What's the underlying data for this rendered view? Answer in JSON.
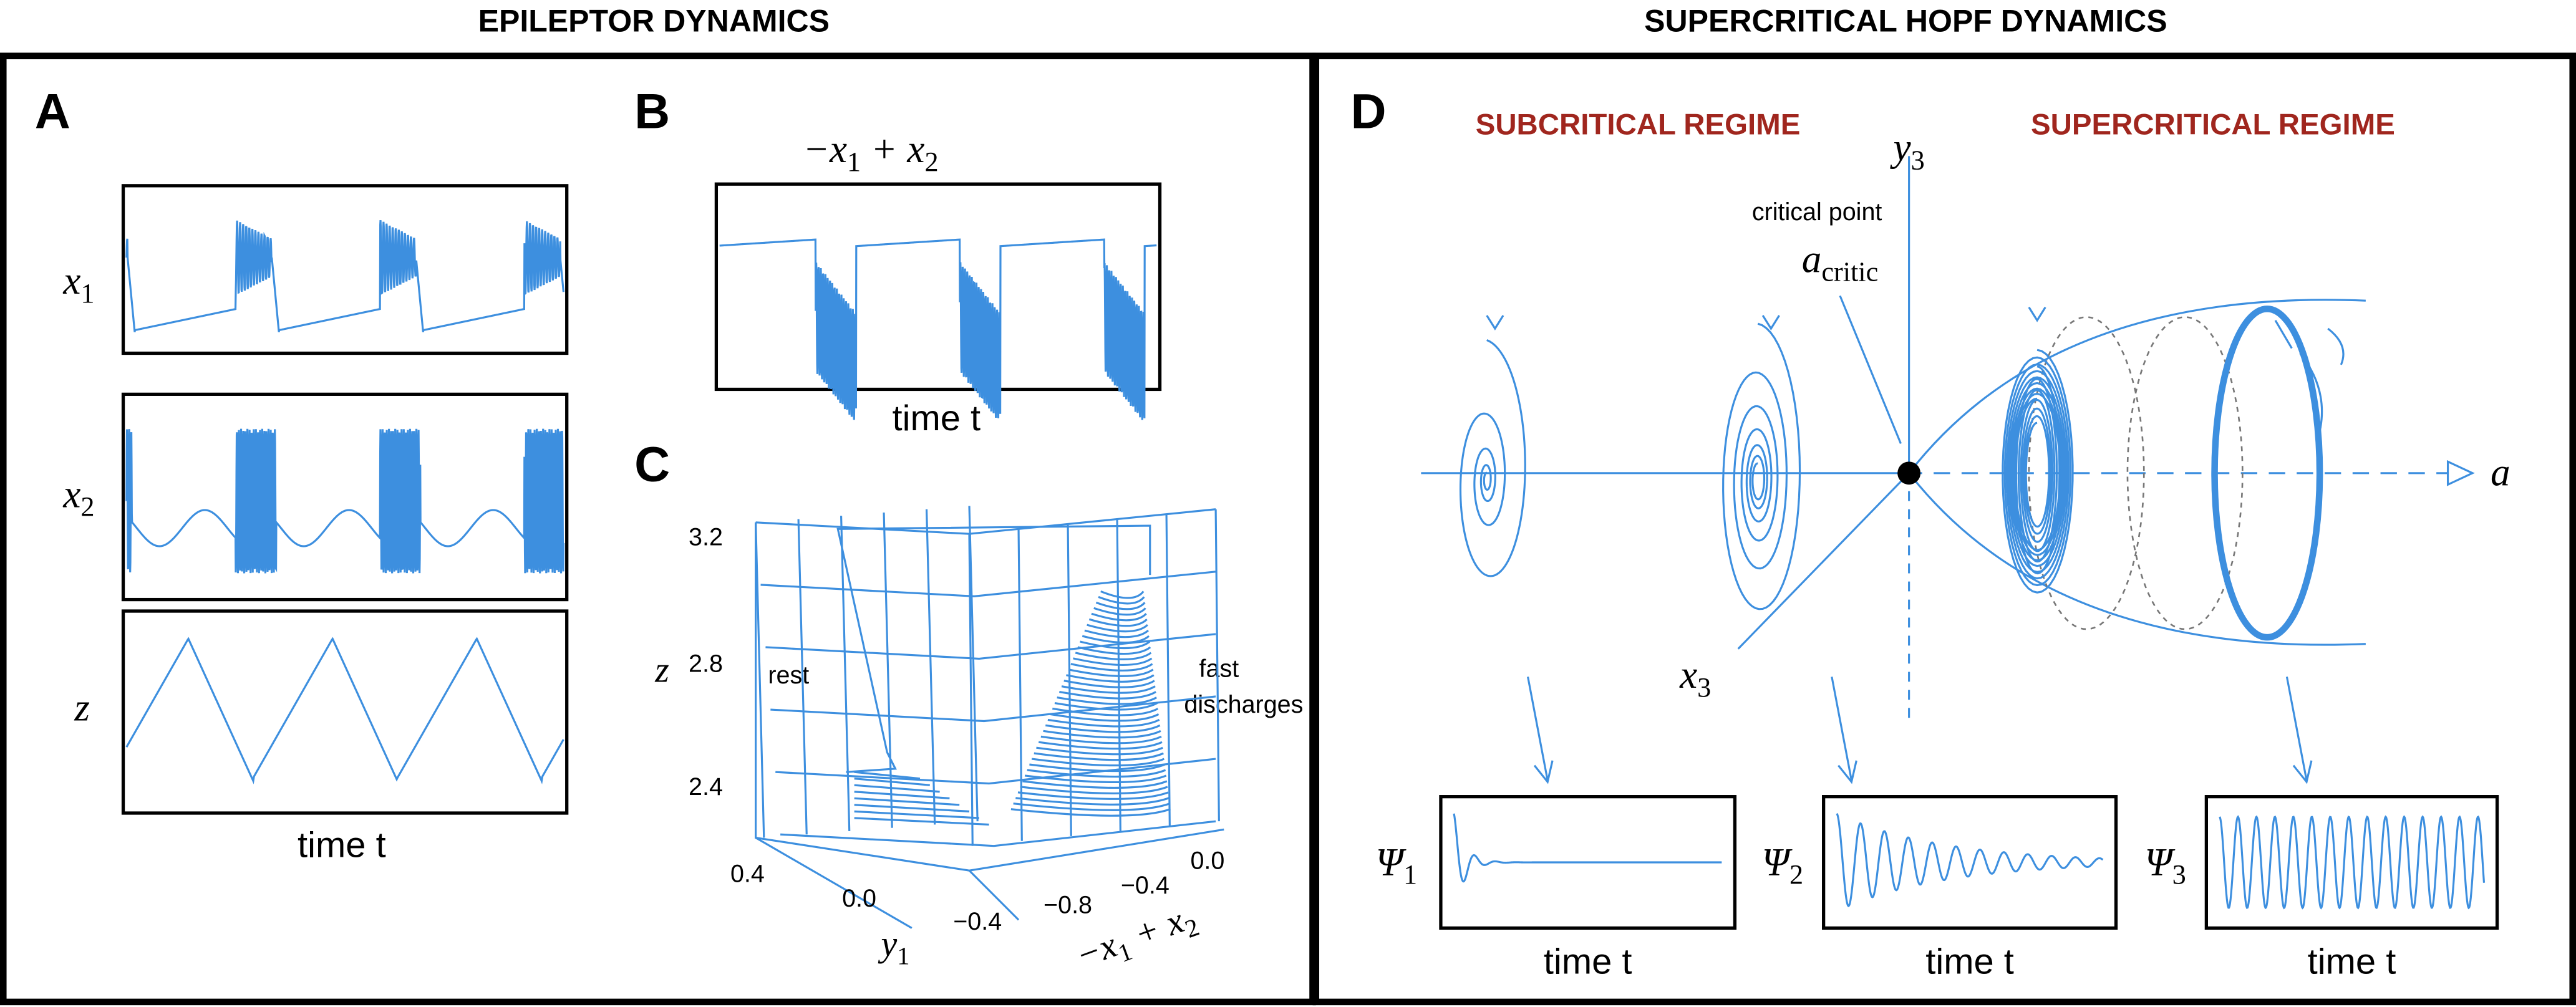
{
  "header": {
    "left_title": "EPILEPTOR DYNAMICS",
    "right_title": "SUPERCRITICAL HOPF DYNAMICS"
  },
  "panel_a": {
    "letter": "A",
    "traces": [
      {
        "base": "x",
        "sub": "1"
      },
      {
        "base": "x",
        "sub": "2"
      },
      {
        "base": "z",
        "sub": ""
      }
    ],
    "xlabel": "time t"
  },
  "panel_b": {
    "letter": "B",
    "title_parts": [
      "−x",
      "1",
      " + x",
      "2"
    ],
    "xlabel": "time t"
  },
  "panel_c": {
    "letter": "C",
    "z_label": "z",
    "z_ticks": [
      "3.2",
      "2.8",
      "2.4"
    ],
    "y1_label": {
      "base": "y",
      "sub": "1"
    },
    "y1_ticks": [
      "0.4",
      "0.0",
      "−0.4"
    ],
    "x_ticks": [
      "−0.8",
      "−0.4",
      "0.0"
    ],
    "x_label_parts": [
      "−x",
      "1",
      " + x",
      "2"
    ],
    "annotations": [
      "rest",
      "fast",
      "discharges"
    ]
  },
  "panel_d": {
    "letter": "D",
    "left_regime": "SUBCRITICAL REGIME",
    "right_regime": "SUPERCRITICAL REGIME",
    "y_axis": {
      "base": "y",
      "sub": "3"
    },
    "x_axis": {
      "base": "x",
      "sub": "3"
    },
    "a_axis": "a",
    "critical_point": "critical point",
    "critical_symbol": {
      "base": "a",
      "sub": "critic"
    },
    "insets": [
      {
        "base": "Ψ",
        "sub": "1",
        "xlabel": "time t"
      },
      {
        "base": "Ψ",
        "sub": "2",
        "xlabel": "time t"
      },
      {
        "base": "Ψ",
        "sub": "3",
        "xlabel": "time t"
      }
    ]
  }
}
